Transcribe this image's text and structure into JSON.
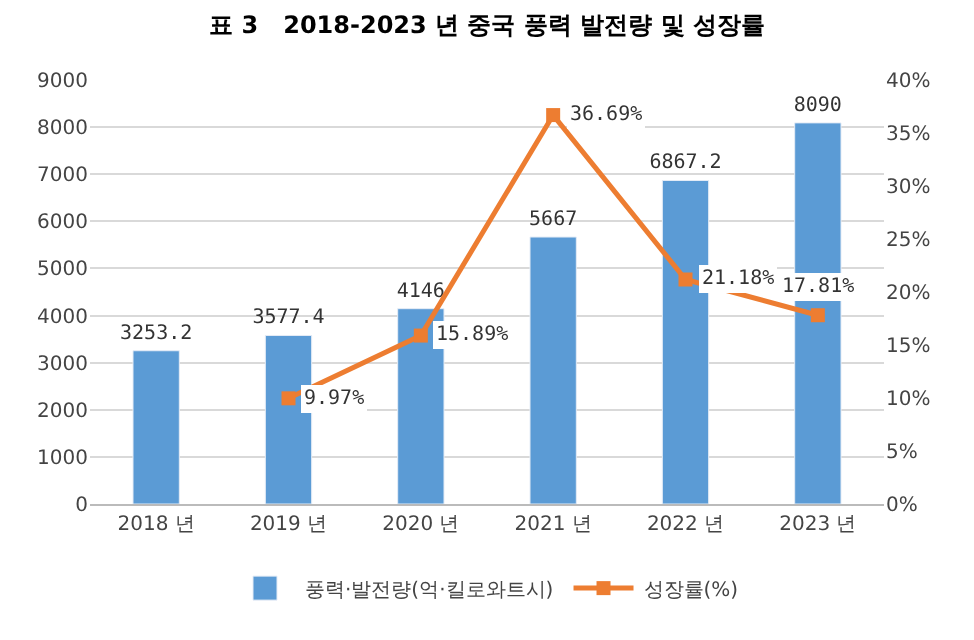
{
  "chart_data": {
    "type": "bar",
    "title": "표 3   2018-2023 년 중국 풍력 발전량 및 성장률",
    "categories": [
      "2018 년",
      "2019 년",
      "2020 년",
      "2021 년",
      "2022 년",
      "2023 년"
    ],
    "series": [
      {
        "name": "풍력·발전량(억·킬로와트시)",
        "color": "#5b9bd5",
        "values": [
          3253.2,
          3577.4,
          4146,
          5667,
          6867.2,
          8090
        ],
        "value_labels": [
          "3253.2",
          "3577.4",
          "4146",
          "5667",
          "6867.2",
          "8090"
        ]
      },
      {
        "name": "성장률(%)",
        "type": "line",
        "axis": "y2",
        "color": "#ed7d31",
        "marker": "square",
        "values": [
          null,
          9.97,
          15.89,
          36.69,
          21.18,
          17.81
        ],
        "value_labels": [
          null,
          "9.97%",
          "15.89%",
          "36.69%",
          "21.18%",
          "17.81%"
        ]
      }
    ],
    "ylim": [
      0,
      9000
    ],
    "yticks": [
      0,
      1000,
      2000,
      3000,
      4000,
      5000,
      6000,
      7000,
      8000,
      9000
    ],
    "y2lim": [
      0,
      40
    ],
    "y2ticks": [
      {
        "value": 0,
        "label": "0%"
      },
      {
        "value": 5,
        "label": "5%"
      },
      {
        "value": 10,
        "label": "10%"
      },
      {
        "value": 15,
        "label": "15%"
      },
      {
        "value": 20,
        "label": "20%"
      },
      {
        "value": 25,
        "label": "25%"
      },
      {
        "value": 30,
        "label": "30%"
      },
      {
        "value": 35,
        "label": "35%"
      },
      {
        "value": 40,
        "label": "40%"
      }
    ],
    "grid": "y",
    "legend": "bottom"
  }
}
